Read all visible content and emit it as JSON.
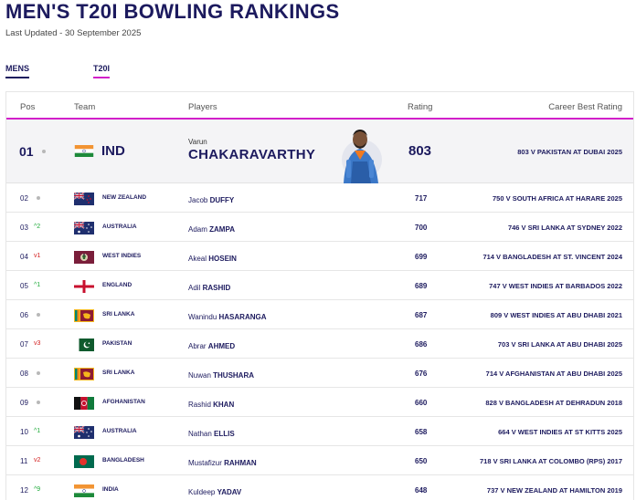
{
  "header": {
    "title": "MEN'S T20I BOWLING RANKINGS",
    "updated": "Last Updated - 30 September 2025"
  },
  "tabs": [
    {
      "label": "MENS"
    },
    {
      "label": "T20I"
    }
  ],
  "columns": {
    "pos": "Pos",
    "team": "Team",
    "players": "Players",
    "rating": "Rating",
    "career_best": "Career Best Rating"
  },
  "top": {
    "pos": "01",
    "team": "IND",
    "first_name": "Varun",
    "last_name": "CHAKARAVARTHY",
    "rating": "803",
    "best": "803 V PAKISTAN AT DUBAI 2025",
    "flag": "india-flag"
  },
  "rows": [
    {
      "pos": "02",
      "move": "",
      "dir": "same",
      "team": "NEW ZEALAND",
      "flag": "new-zealand-flag",
      "first": "Jacob",
      "last": "DUFFY",
      "rating": "717",
      "best": "750 V SOUTH AFRICA AT HARARE 2025"
    },
    {
      "pos": "03",
      "move": "^2",
      "dir": "up",
      "team": "AUSTRALIA",
      "flag": "australia-flag",
      "first": "Adam",
      "last": "ZAMPA",
      "rating": "700",
      "best": "746 V SRI LANKA AT SYDNEY 2022"
    },
    {
      "pos": "04",
      "move": "v1",
      "dir": "down",
      "team": "WEST INDIES",
      "flag": "west-indies-flag",
      "first": "Akeal",
      "last": "HOSEIN",
      "rating": "699",
      "best": "714 V BANGLADESH AT ST. VINCENT 2024"
    },
    {
      "pos": "05",
      "move": "^1",
      "dir": "up",
      "team": "ENGLAND",
      "flag": "england-flag",
      "first": "Adil",
      "last": "RASHID",
      "rating": "689",
      "best": "747 V WEST INDIES AT BARBADOS 2022"
    },
    {
      "pos": "06",
      "move": "",
      "dir": "same",
      "team": "SRI LANKA",
      "flag": "sri-lanka-flag",
      "first": "Wanindu",
      "last": "HASARANGA",
      "rating": "687",
      "best": "809 V WEST INDIES AT ABU DHABI 2021"
    },
    {
      "pos": "07",
      "move": "v3",
      "dir": "down",
      "team": "PAKISTAN",
      "flag": "pakistan-flag",
      "first": "Abrar",
      "last": "AHMED",
      "rating": "686",
      "best": "703 V SRI LANKA AT ABU DHABI 2025"
    },
    {
      "pos": "08",
      "move": "",
      "dir": "same",
      "team": "SRI LANKA",
      "flag": "sri-lanka-flag",
      "first": "Nuwan",
      "last": "THUSHARA",
      "rating": "676",
      "best": "714 V AFGHANISTAN AT ABU DHABI 2025"
    },
    {
      "pos": "09",
      "move": "",
      "dir": "same",
      "team": "AFGHANISTAN",
      "flag": "afghanistan-flag",
      "first": "Rashid",
      "last": "KHAN",
      "rating": "660",
      "best": "828 V BANGLADESH AT DEHRADUN 2018"
    },
    {
      "pos": "10",
      "move": "^1",
      "dir": "up",
      "team": "AUSTRALIA",
      "flag": "australia-flag",
      "first": "Nathan",
      "last": "ELLIS",
      "rating": "658",
      "best": "664 V WEST INDIES AT ST KITTS 2025"
    },
    {
      "pos": "11",
      "move": "v2",
      "dir": "down",
      "team": "BANGLADESH",
      "flag": "bangladesh-flag",
      "first": "Mustafizur",
      "last": "RAHMAN",
      "rating": "650",
      "best": "718 V SRI LANKA AT COLOMBO (RPS) 2017"
    },
    {
      "pos": "12",
      "move": "^9",
      "dir": "up",
      "team": "INDIA",
      "flag": "india-flag",
      "first": "Kuldeep",
      "last": "YADAV",
      "rating": "648",
      "best": "737 V NEW ZEALAND AT HAMILTON 2019"
    }
  ]
}
